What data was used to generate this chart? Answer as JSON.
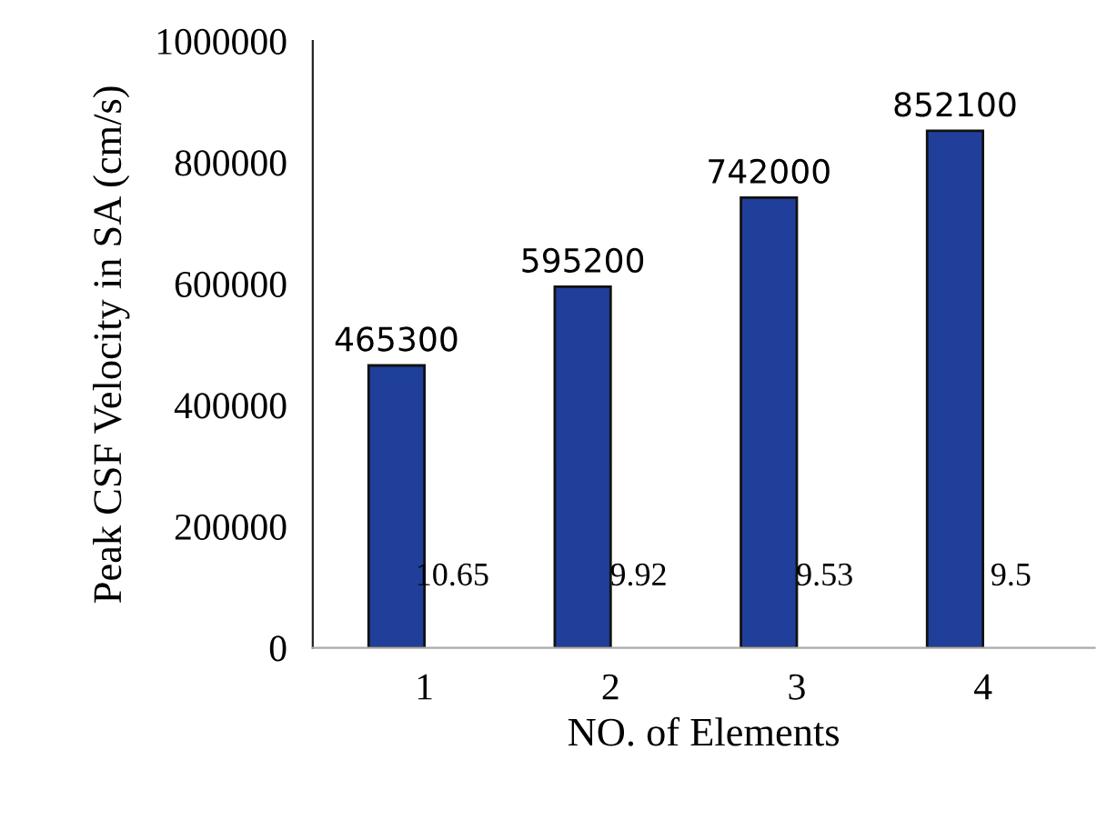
{
  "chart_data": {
    "type": "bar",
    "xlabel": "NO. of Elements",
    "ylabel": "Peak CSF Velocity in SA (cm/s)",
    "categories": [
      "1",
      "2",
      "3",
      "4"
    ],
    "series": [
      {
        "color": "#1f3f9a",
        "values": [
          465300,
          595200,
          742000,
          852100
        ]
      },
      {
        "color": "#c0504d",
        "values": [
          10.65,
          9.92,
          9.53,
          9.5
        ]
      }
    ],
    "ylim": [
      0,
      1000000
    ],
    "yticks": [
      0,
      200000,
      400000,
      600000,
      800000,
      1000000
    ],
    "grid": false,
    "legend": false,
    "data_labels": true
  }
}
